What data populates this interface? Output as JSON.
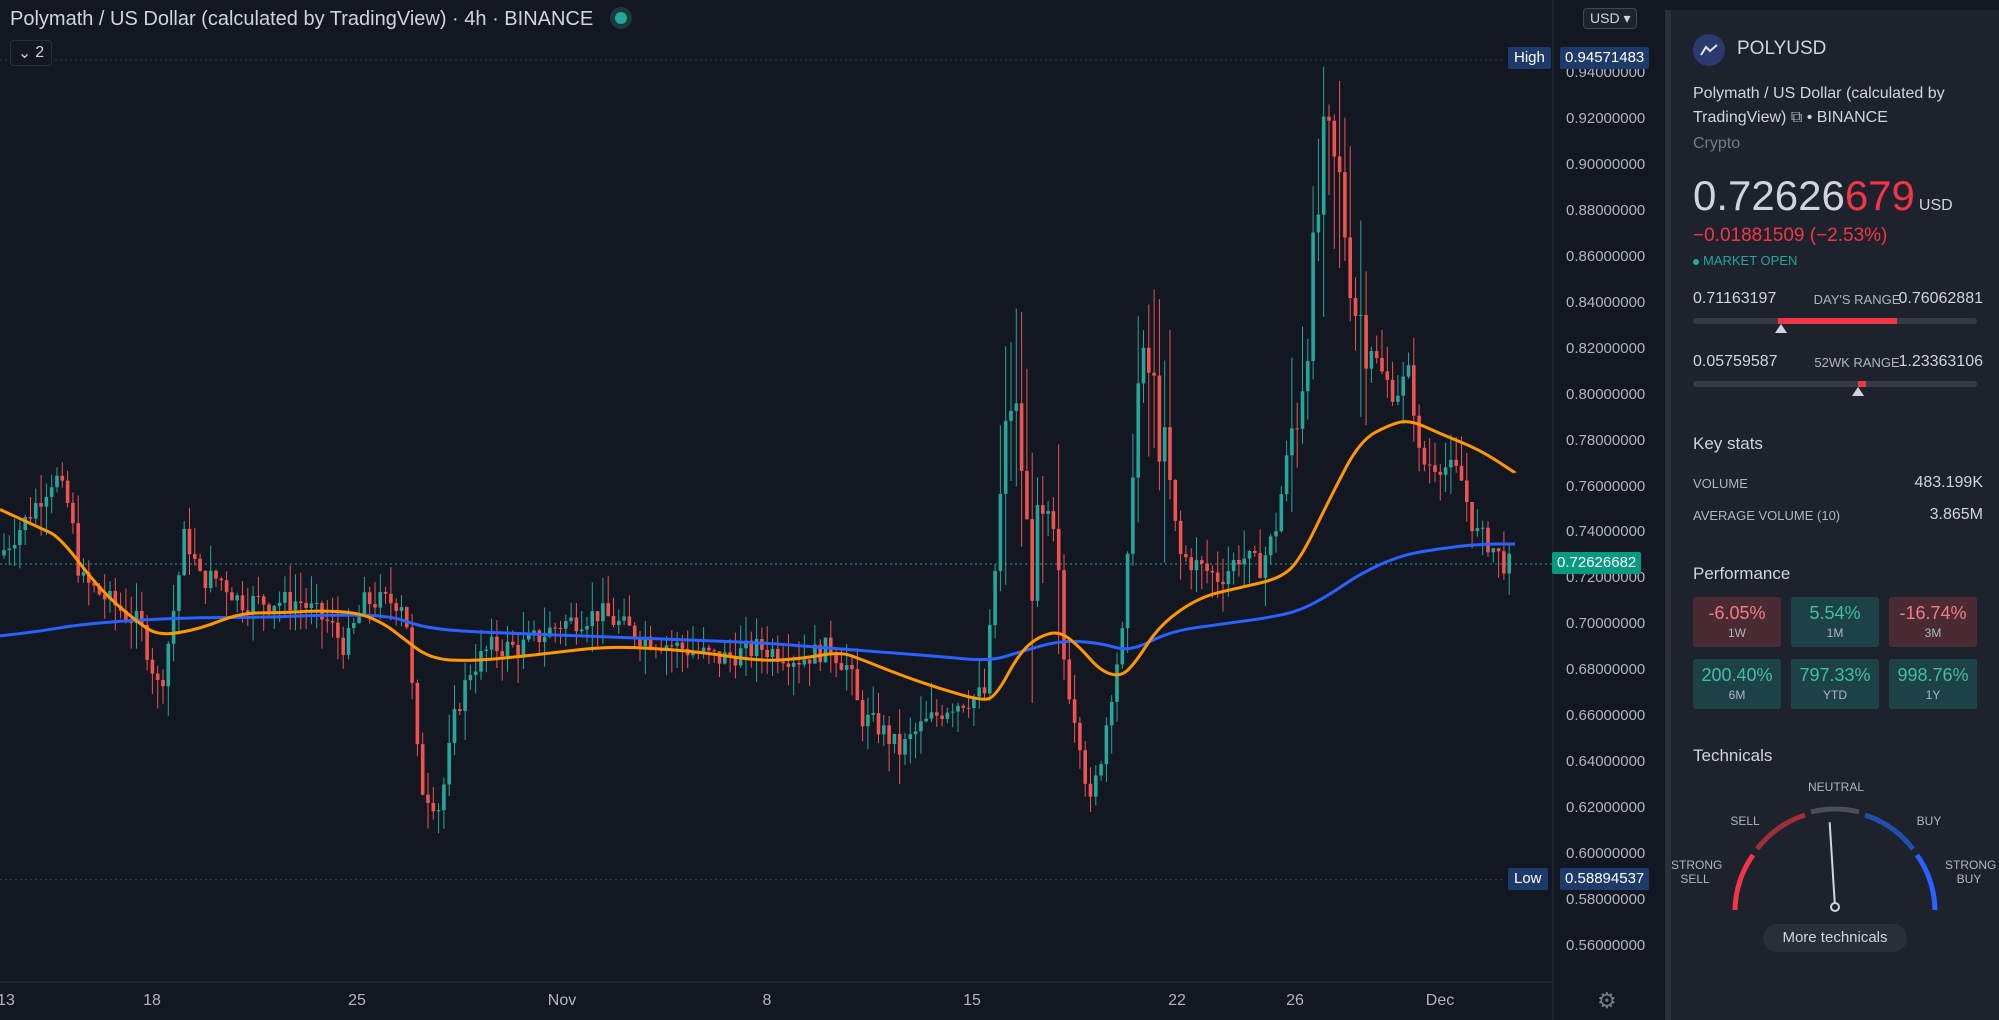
{
  "chart": {
    "title_parts": [
      "Polymath / US Dollar (calculated by TradingView)",
      "4h",
      "BINANCE"
    ],
    "title_sep": " · ",
    "collapse_count": "2",
    "currency": "USD",
    "high_label": "High",
    "high_value": "0.94571483",
    "low_label": "Low",
    "low_value": "0.58894537",
    "current_price_tag": "0.72626682",
    "price_axis": [
      "0.94000000",
      "0.92000000",
      "0.90000000",
      "0.88000000",
      "0.86000000",
      "0.84000000",
      "0.82000000",
      "0.80000000",
      "0.78000000",
      "0.76000000",
      "0.74000000",
      "0.72000000",
      "0.70000000",
      "0.68000000",
      "0.66000000",
      "0.64000000",
      "0.62000000",
      "0.60000000",
      "0.58000000",
      "0.56000000"
    ],
    "time_axis": [
      "13",
      "18",
      "25",
      "Nov",
      "8",
      "15",
      "22",
      "26",
      "Dec"
    ],
    "colors": {
      "up": "#26a69a",
      "down": "#ef5350",
      "ma_fast": "#ff9800",
      "ma_slow": "#2962ff",
      "background": "#131722"
    },
    "gear_icon": "gear-icon"
  },
  "chart_data": {
    "type": "line",
    "title": "Polymath / US Dollar (calculated by TradingView) · 4h · BINANCE",
    "ylim": [
      0.55,
      0.96
    ],
    "high": 0.94571483,
    "low": 0.58894537,
    "last": 0.72626682,
    "series": [
      {
        "x": [
          "13",
          "18",
          "25",
          "Nov",
          "8",
          "15",
          "22",
          "26",
          "Dec"
        ],
        "values": [
          0.75,
          0.74,
          0.72,
          0.685,
          0.688,
          0.668,
          0.695,
          0.73,
          0.767
        ]
      },
      {
        "x": [
          "13",
          "18",
          "25",
          "Nov",
          "8",
          "15",
          "22",
          "26",
          "Dec"
        ],
        "values": [
          0.697,
          0.701,
          0.703,
          0.695,
          0.69,
          0.684,
          0.698,
          0.71,
          0.735
        ]
      }
    ],
    "candles_summary": {
      "open_range": [
        0.59,
        0.95
      ],
      "note_values": [
        0.76,
        0.72,
        0.7,
        0.68,
        0.62,
        0.69,
        0.69,
        0.66,
        0.82,
        0.6,
        0.82,
        0.72,
        0.93,
        0.78,
        0.73
      ]
    },
    "grid": false,
    "legend": "none"
  },
  "panel": {
    "symbol": "POLYUSD",
    "description": "Polymath / US Dollar (calculated by TradingView)",
    "exchange": "BINANCE",
    "category": "Crypto",
    "price_main": "0.72626",
    "price_tail": "679",
    "price_currency": "USD",
    "change": "−0.01881509 (−2.53%)",
    "market_status": "MARKET OPEN",
    "days_range": {
      "low": "0.71163197",
      "label": "DAY'S RANGE",
      "high": "0.76062881"
    },
    "wk52_range": {
      "low": "0.05759587",
      "label": "52WK RANGE",
      "high": "1.23363106"
    },
    "days_range_fill": [
      0.3,
      0.72
    ],
    "days_range_marker": 0.31,
    "wk52_range_fill": [
      0.58,
      0.61
    ],
    "wk52_range_marker": 0.58,
    "key_stats_title": "Key stats",
    "stats": [
      {
        "label": "VOLUME",
        "value": "483.199K"
      },
      {
        "label": "AVERAGE VOLUME (10)",
        "value": "3.865M"
      }
    ],
    "performance_title": "Performance",
    "performance": [
      {
        "value": "-6.05%",
        "label": "1W",
        "sign": "neg"
      },
      {
        "value": "5.54%",
        "label": "1M",
        "sign": "pos"
      },
      {
        "value": "-16.74%",
        "label": "3M",
        "sign": "neg"
      },
      {
        "value": "200.40%",
        "label": "6M",
        "sign": "pos"
      },
      {
        "value": "797.33%",
        "label": "YTD",
        "sign": "pos"
      },
      {
        "value": "998.76%",
        "label": "1Y",
        "sign": "pos"
      }
    ],
    "technicals_title": "Technicals",
    "gauge": {
      "strong_sell": "STRONG\nSELL",
      "sell": "SELL",
      "neutral": "NEUTRAL",
      "buy": "BUY",
      "strong_buy": "STRONG\nBUY",
      "needle_level": 0.48
    },
    "more_technicals": "More technicals"
  }
}
